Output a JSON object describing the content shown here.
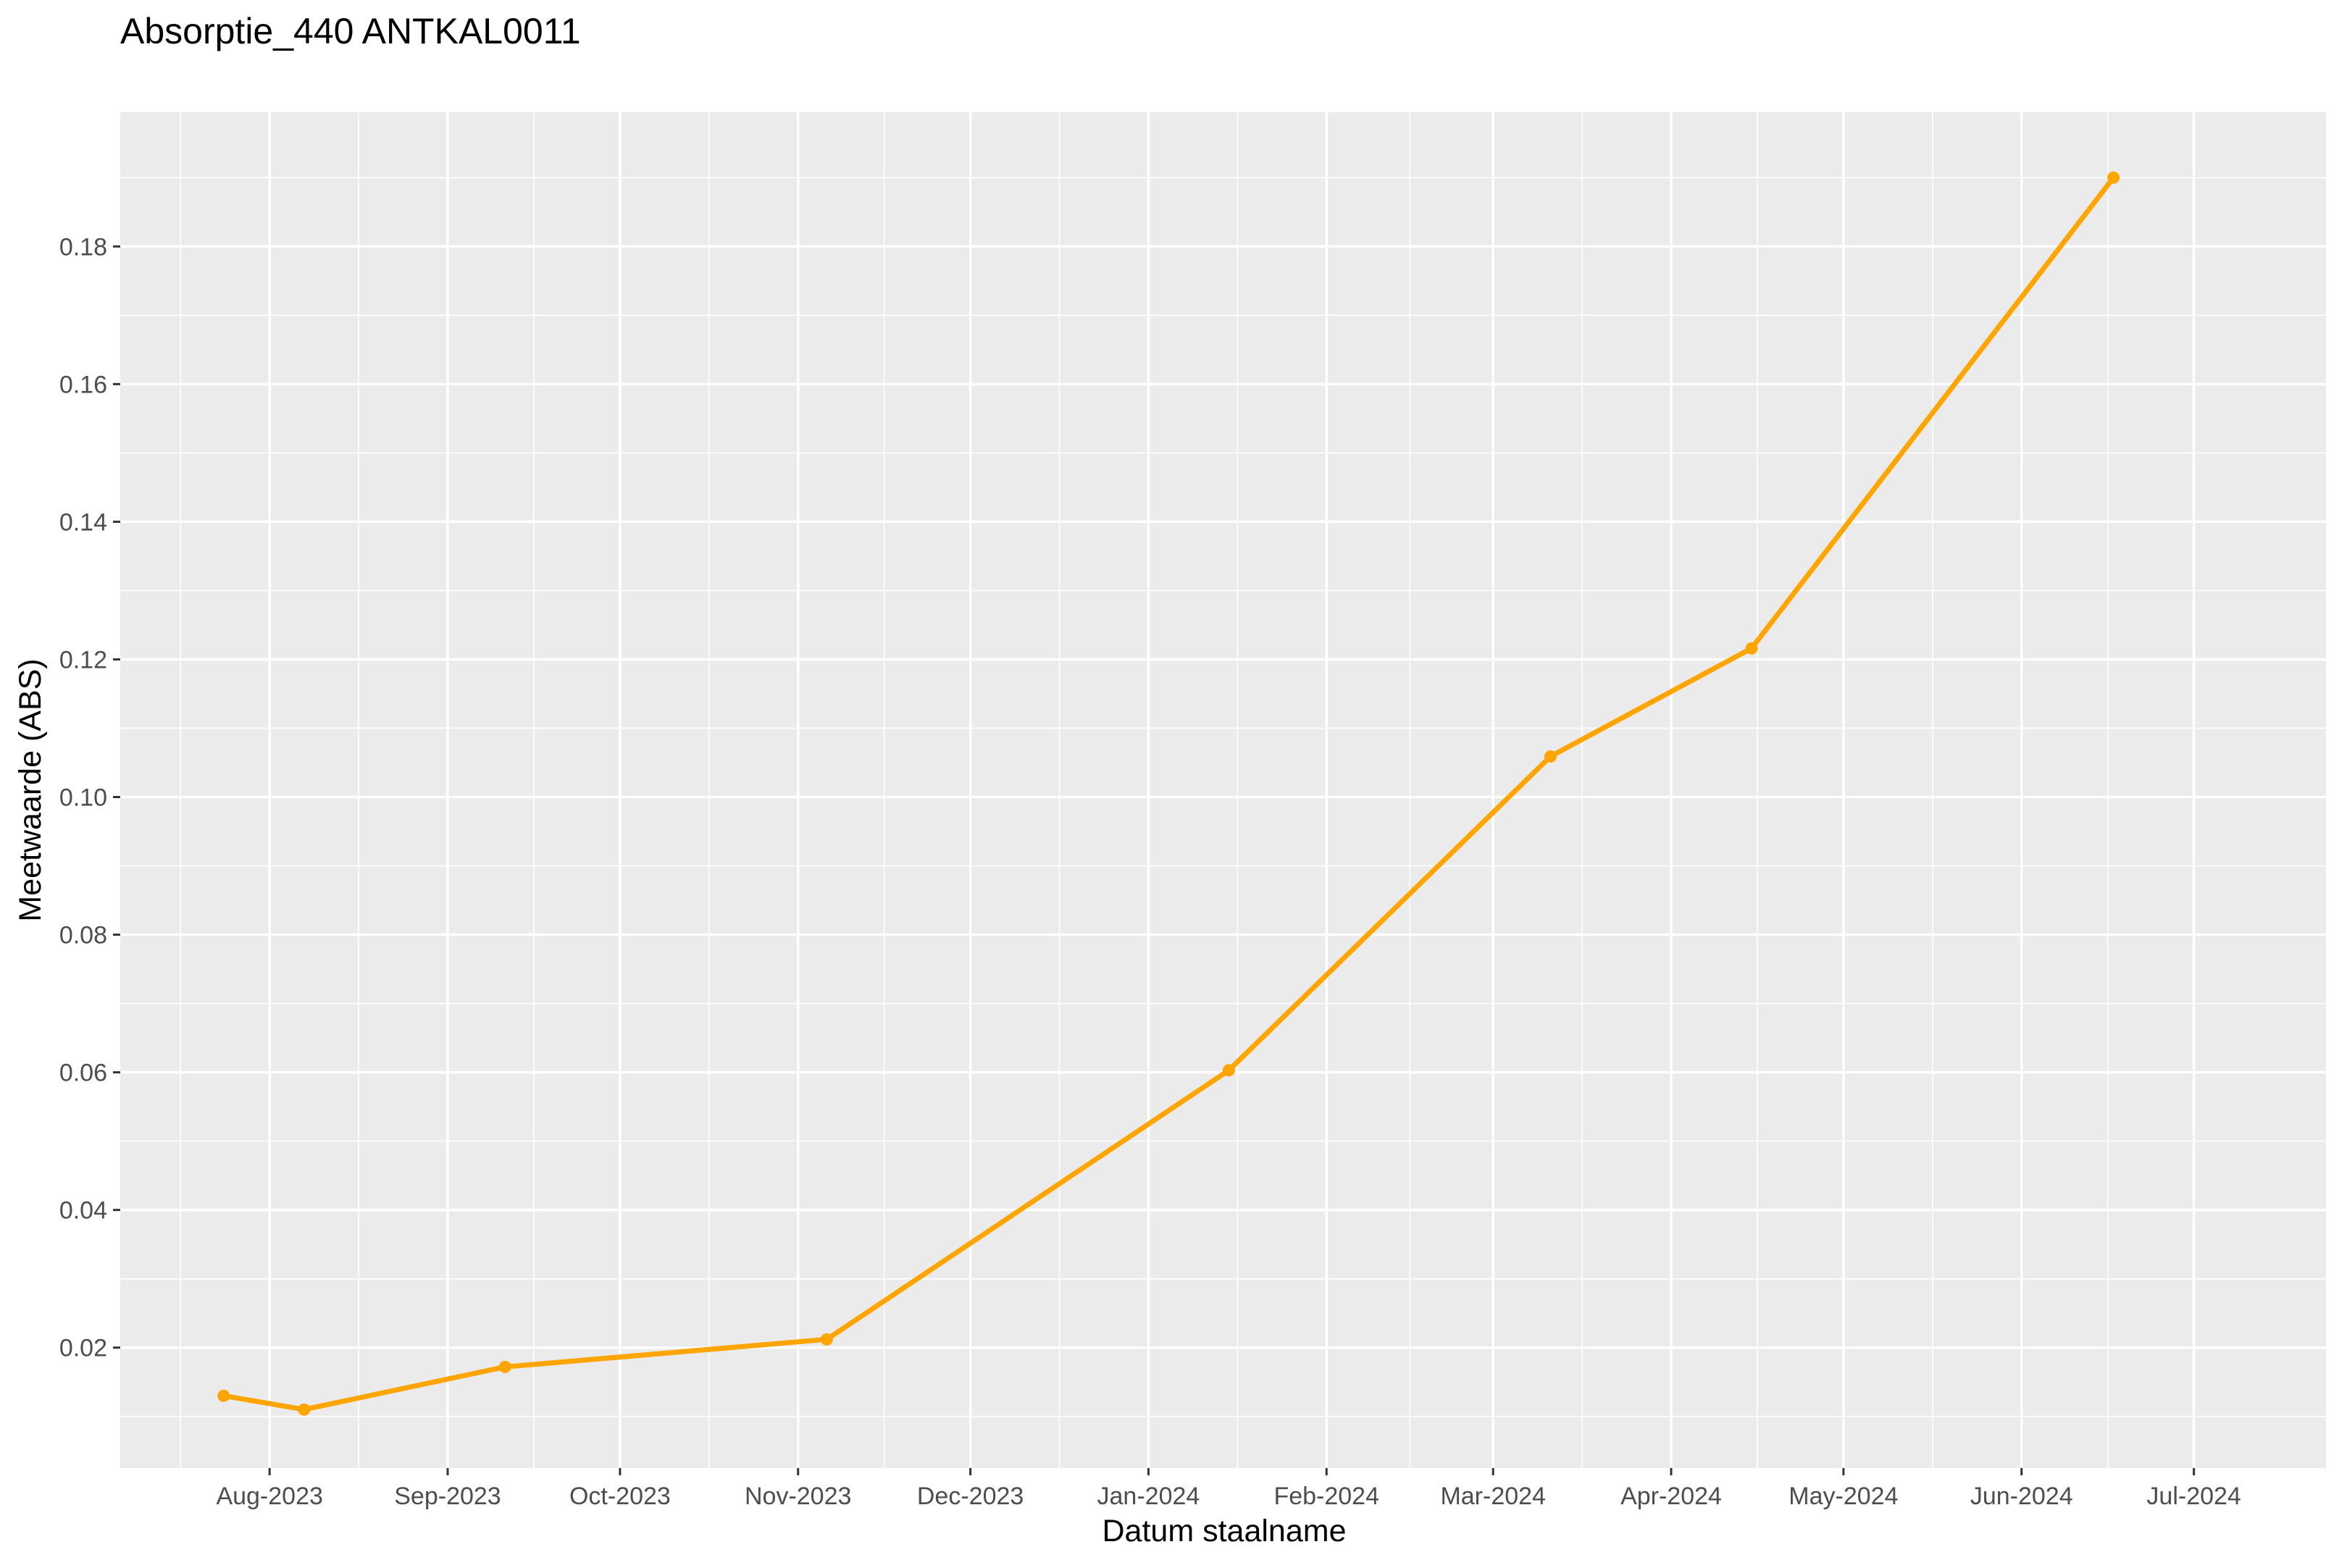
{
  "chart_data": {
    "type": "line",
    "title": "Absorptie_440 ANTKAL0011",
    "xlabel": "Datum staalname",
    "ylabel": "Meetwaarde (ABS)",
    "x_type": "date",
    "xlim": [
      "2023-07-06",
      "2024-07-24"
    ],
    "ylim": [
      0.0025,
      0.1995
    ],
    "x_ticks": [
      {
        "date": "2023-08-01",
        "label": "Aug-2023"
      },
      {
        "date": "2023-09-01",
        "label": "Sep-2023"
      },
      {
        "date": "2023-10-01",
        "label": "Oct-2023"
      },
      {
        "date": "2023-11-01",
        "label": "Nov-2023"
      },
      {
        "date": "2023-12-01",
        "label": "Dec-2023"
      },
      {
        "date": "2024-01-01",
        "label": "Jan-2024"
      },
      {
        "date": "2024-02-01",
        "label": "Feb-2024"
      },
      {
        "date": "2024-03-01",
        "label": "Mar-2024"
      },
      {
        "date": "2024-04-01",
        "label": "Apr-2024"
      },
      {
        "date": "2024-05-01",
        "label": "May-2024"
      },
      {
        "date": "2024-06-01",
        "label": "Jun-2024"
      },
      {
        "date": "2024-07-01",
        "label": "Jul-2024"
      }
    ],
    "y_ticks": [
      0.02,
      0.04,
      0.06,
      0.08,
      0.1,
      0.12,
      0.14,
      0.16,
      0.18
    ],
    "y_tick_labels": [
      "0.02",
      "0.04",
      "0.06",
      "0.08",
      "0.10",
      "0.12",
      "0.14",
      "0.16",
      "0.18"
    ],
    "grid": true,
    "panel_background": "#EBEBEB",
    "grid_color": "#FFFFFF",
    "series": [
      {
        "color": "#FFA500",
        "points": [
          {
            "x": "2023-07-24",
            "y": 0.013
          },
          {
            "x": "2023-08-07",
            "y": 0.011
          },
          {
            "x": "2023-09-11",
            "y": 0.0172
          },
          {
            "x": "2023-11-06",
            "y": 0.0212
          },
          {
            "x": "2024-01-15",
            "y": 0.0603
          },
          {
            "x": "2024-03-11",
            "y": 0.1059
          },
          {
            "x": "2024-04-15",
            "y": 0.1216
          },
          {
            "x": "2024-06-17",
            "y": 0.19
          }
        ]
      }
    ]
  }
}
